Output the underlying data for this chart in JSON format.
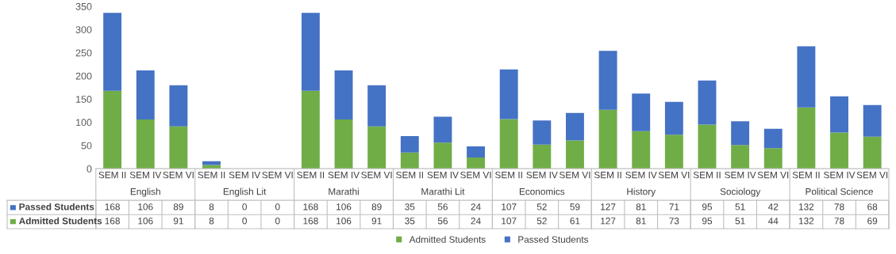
{
  "chart_data": {
    "type": "bar",
    "stacked": true,
    "categories": [
      "SEM II",
      "SEM IV",
      "SEM VI",
      "SEM II",
      "SEM IV",
      "SEM VI",
      "SEM II",
      "SEM IV",
      "SEM VI",
      "SEM II",
      "SEM IV",
      "SEM VI",
      "SEM II",
      "SEM IV",
      "SEM VI",
      "SEM II",
      "SEM IV",
      "SEM VI",
      "SEM II",
      "SEM IV",
      "SEM VI",
      "SEM II",
      "SEM IV",
      "SEM VI"
    ],
    "annotations": [
      "English",
      "English Lit",
      "Marathi",
      "Marathi Lit",
      "Economics",
      "History",
      "Sociology",
      "Political Science"
    ],
    "series": [
      {
        "name": "Admitted Students",
        "color": "#70ad47",
        "values": [
          168,
          106,
          91,
          8,
          0,
          0,
          168,
          106,
          91,
          35,
          56,
          24,
          107,
          52,
          61,
          127,
          81,
          73,
          95,
          51,
          44,
          132,
          78,
          69
        ]
      },
      {
        "name": "Passed Students",
        "color": "#4472c4",
        "values": [
          168,
          106,
          89,
          8,
          0,
          0,
          168,
          106,
          89,
          35,
          56,
          24,
          107,
          52,
          59,
          127,
          81,
          71,
          95,
          51,
          42,
          132,
          78,
          68
        ]
      }
    ],
    "ylim": [
      0,
      350
    ],
    "yticks": [
      0,
      50,
      100,
      150,
      200,
      250,
      300,
      350
    ],
    "grid": false,
    "data_labels": true,
    "legend": "bottom"
  }
}
